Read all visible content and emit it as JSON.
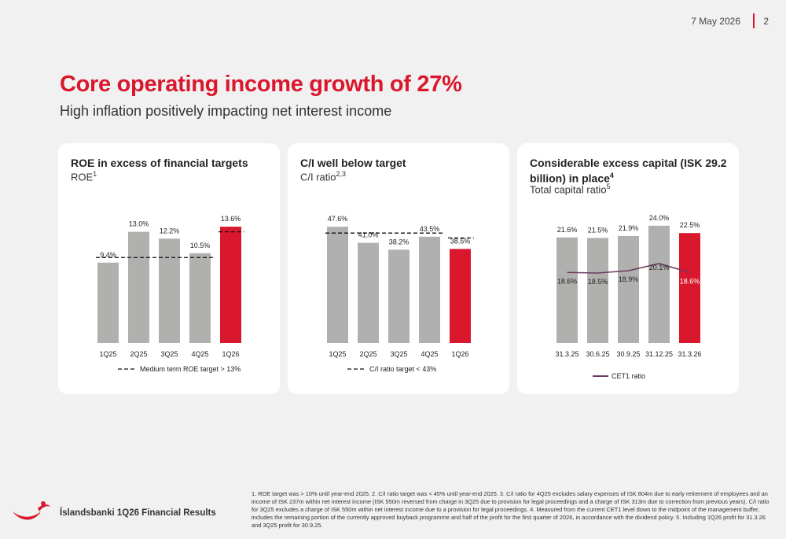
{
  "header": {
    "date": "7 May 2026",
    "page": "2"
  },
  "title": "Core operating income growth of 27%",
  "subtitle": "High inflation positively impacting net interest income",
  "brand": "Íslandsbanki 1Q26 Financial Results",
  "footnote": "1. ROE target was > 10% until year-end 2025. 2. C/I ratio target was < 45% until year-end 2025. 3. C/I ratio for 4Q25 excludes salary expenses of ISK 804m due to early retirement of employees and an income of ISK 237m within net interest income (ISK 550m reversed from charge in 3Q25 due to provision for legal proceedings and a charge of ISK 313m due to correction from previous years).  C/I ratio for 3Q25 excludes a charge of ISK 550m within net interest income due to a provision for legal proceedings. 4. Measured from the current CET1 level down to the midpoint of the management buffer, includes the remaining portion of the currently approved buyback programme and half of the profit for the first quarter of 2026, in accordance with the dividend policy. 5. Including 1Q26 profit for 31.3.26 and 3Q25 profit for 30.9.25.",
  "colors": {
    "accent": "#d9182d",
    "bar": "#b0b0ae",
    "line": "#6b3a5c"
  },
  "panels": [
    {
      "title": "ROE in excess of financial targets",
      "subtitle": "ROE",
      "subtitle_sup": "1"
    },
    {
      "title": "C/I well below target",
      "subtitle": "C/I ratio",
      "subtitle_sup": "2,3"
    },
    {
      "title": "Considerable excess capital (ISK 29.2 billion) in place",
      "title_sup": "4",
      "subtitle": "Total capital ratio",
      "subtitle_sup": "5"
    }
  ],
  "chart_data": [
    {
      "type": "bar",
      "categories": [
        "1Q25",
        "2Q25",
        "3Q25",
        "4Q25",
        "1Q26"
      ],
      "values": [
        9.4,
        13.0,
        12.2,
        10.5,
        13.6
      ],
      "labels": [
        "9.4%",
        "13.0%",
        "12.2%",
        "10.5%",
        "13.6%"
      ],
      "highlight_index": 4,
      "target": {
        "name": "Medium term ROE target > 13%",
        "segments": [
          {
            "from": 0,
            "to": 3,
            "value": 10
          },
          {
            "from": 4,
            "to": 4,
            "value": 13
          }
        ]
      },
      "ylim": [
        0,
        16
      ]
    },
    {
      "type": "bar",
      "categories": [
        "1Q25",
        "2Q25",
        "3Q25",
        "4Q25",
        "1Q26"
      ],
      "values": [
        47.6,
        41.0,
        38.2,
        43.5,
        38.5
      ],
      "labels": [
        "47.6%",
        "41.0%",
        "38.2%",
        "43.5%",
        "38.5%"
      ],
      "highlight_index": 4,
      "target": {
        "name": "C/I ratio target < 43%",
        "segments": [
          {
            "from": 0,
            "to": 3,
            "value": 45
          },
          {
            "from": 4,
            "to": 4,
            "value": 43
          }
        ]
      },
      "ylim": [
        0,
        56
      ]
    },
    {
      "type": "bar",
      "categories": [
        "31.3.25",
        "30.6.25",
        "30.9.25",
        "31.12.25",
        "31.3.26"
      ],
      "values": [
        21.6,
        21.5,
        21.9,
        24.0,
        22.5
      ],
      "labels": [
        "21.6%",
        "21.5%",
        "21.9%",
        "24.0%",
        "22.5%"
      ],
      "highlight_index": 4,
      "line_series": {
        "name": "CET1 ratio",
        "values": [
          18.6,
          18.5,
          18.9,
          20.1,
          18.6
        ],
        "labels": [
          "18.6%",
          "18.5%",
          "18.9%",
          "20.1%",
          "18.6%"
        ]
      },
      "ylim": [
        0,
        28
      ]
    }
  ]
}
